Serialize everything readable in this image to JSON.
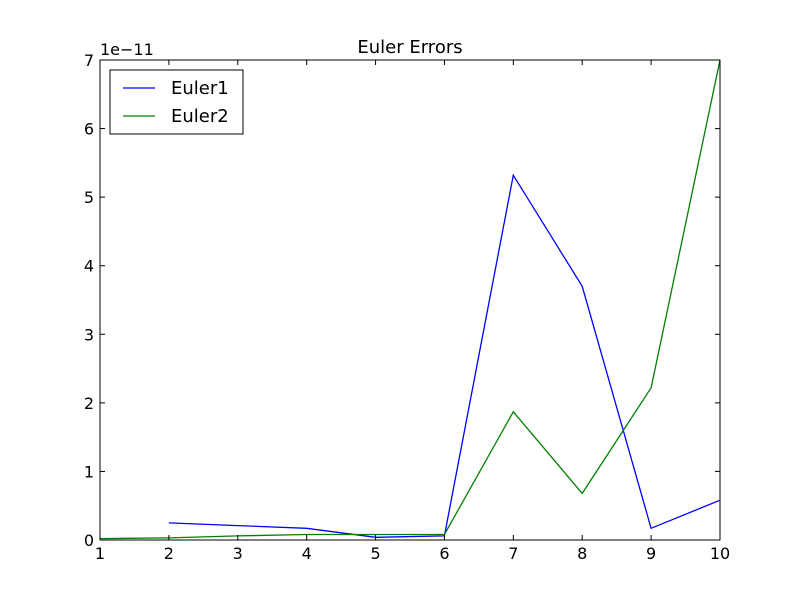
{
  "chart_data": {
    "type": "line",
    "title": "Euler Errors",
    "xlabel": "",
    "ylabel": "",
    "y_offset_label": "1e−11",
    "xlim": [
      1,
      10
    ],
    "ylim": [
      0,
      7
    ],
    "x_ticks": [
      1,
      2,
      3,
      4,
      5,
      6,
      7,
      8,
      9,
      10
    ],
    "y_ticks": [
      0,
      1,
      2,
      3,
      4,
      5,
      6,
      7
    ],
    "grid": false,
    "legend_position": "top-left",
    "series": [
      {
        "name": "Euler1",
        "color": "#0000ff",
        "x": [
          2,
          3,
          4,
          5,
          6,
          7,
          8,
          9,
          10
        ],
        "y": [
          0.25,
          0.21,
          0.17,
          0.04,
          0.06,
          5.32,
          3.7,
          0.17,
          0.58
        ]
      },
      {
        "name": "Euler2",
        "color": "#008000",
        "x": [
          1,
          2,
          3,
          4,
          5,
          6,
          7,
          8,
          9,
          10
        ],
        "y": [
          0.02,
          0.03,
          0.06,
          0.08,
          0.08,
          0.08,
          1.87,
          0.68,
          2.22,
          7.0
        ]
      }
    ]
  }
}
